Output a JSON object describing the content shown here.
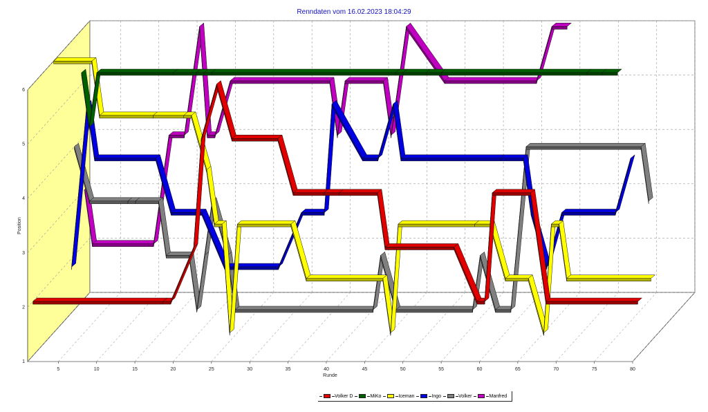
{
  "chart_data": {
    "type": "line",
    "title": "Renndaten vom 16.02.2023 18:04:29",
    "xlabel": "Runde",
    "ylabel": "Position",
    "x_ticks": [
      "5",
      "10",
      "15",
      "20",
      "25",
      "30",
      "35",
      "40",
      "45",
      "50",
      "55",
      "60",
      "65",
      "70",
      "75",
      "80"
    ],
    "y_ticks": [
      "1",
      "2",
      "3",
      "4",
      "5",
      "6"
    ],
    "xlim": [
      1,
      80
    ],
    "ylim": [
      1,
      6
    ],
    "grid": true,
    "legend_position": "bottom",
    "series": [
      {
        "name": "Volker D",
        "color": "#e00000",
        "segments": [
          [
            1,
            2
          ],
          [
            18,
            2
          ],
          [
            19,
            2
          ],
          [
            22,
            3
          ],
          [
            23,
            5
          ],
          [
            25,
            6
          ],
          [
            27,
            5
          ],
          [
            33,
            5
          ],
          [
            35,
            4
          ],
          [
            39,
            4
          ],
          [
            41,
            4
          ],
          [
            46,
            4
          ],
          [
            47,
            3
          ],
          [
            56,
            3
          ],
          [
            59,
            2
          ],
          [
            60,
            2
          ],
          [
            61,
            4
          ],
          [
            66,
            4
          ],
          [
            68,
            2
          ],
          [
            80,
            2
          ]
        ]
      },
      {
        "name": "MiKo",
        "color": "#006000",
        "segments": [
          [
            6,
            6
          ],
          [
            7,
            5
          ],
          [
            8,
            6
          ],
          [
            18,
            6
          ],
          [
            21,
            6
          ],
          [
            22,
            6
          ],
          [
            23,
            6
          ],
          [
            47,
            6
          ],
          [
            48,
            6
          ],
          [
            51,
            6
          ],
          [
            53,
            6
          ],
          [
            72,
            6
          ],
          [
            74,
            6
          ],
          [
            76,
            6
          ]
        ]
      },
      {
        "name": "Iceman",
        "color": "#ffff00",
        "segments": [
          [
            1,
            6
          ],
          [
            6,
            6
          ],
          [
            7,
            5
          ],
          [
            14,
            5
          ],
          [
            18,
            5
          ],
          [
            19,
            5
          ],
          [
            21,
            4
          ],
          [
            22,
            3
          ],
          [
            23,
            3
          ],
          [
            24,
            1
          ],
          [
            25,
            3
          ],
          [
            32,
            3
          ],
          [
            34,
            2
          ],
          [
            44,
            2
          ],
          [
            45,
            1
          ],
          [
            46,
            3
          ],
          [
            56,
            3
          ],
          [
            58,
            3
          ],
          [
            60,
            2
          ],
          [
            63,
            2
          ],
          [
            65,
            1
          ],
          [
            66,
            3
          ],
          [
            67,
            3
          ],
          [
            68,
            2
          ],
          [
            79,
            2
          ]
        ]
      },
      {
        "name": "Ingo",
        "color": "#0000e0",
        "segments": [
          [
            2,
            2
          ],
          [
            4,
            5
          ],
          [
            5,
            4
          ],
          [
            13,
            4
          ],
          [
            15,
            3
          ],
          [
            19,
            3
          ],
          [
            22,
            2
          ],
          [
            23,
            2
          ],
          [
            29,
            2
          ],
          [
            32,
            3
          ],
          [
            35,
            3
          ],
          [
            36,
            5
          ],
          [
            40,
            4
          ],
          [
            42,
            4
          ],
          [
            44,
            5
          ],
          [
            45,
            4
          ],
          [
            58,
            4
          ],
          [
            61,
            4
          ],
          [
            62,
            3
          ],
          [
            64,
            2
          ],
          [
            66,
            3
          ],
          [
            73,
            3
          ],
          [
            75,
            4
          ]
        ]
      },
      {
        "name": "Volker",
        "color": "#808080",
        "segments": [
          [
            1,
            4
          ],
          [
            3,
            3
          ],
          [
            8,
            3
          ],
          [
            9,
            3
          ],
          [
            12,
            3
          ],
          [
            13,
            2
          ],
          [
            16,
            2
          ],
          [
            17,
            1
          ],
          [
            18,
            2
          ],
          [
            19,
            3
          ],
          [
            21,
            2
          ],
          [
            22,
            1
          ],
          [
            40,
            1
          ],
          [
            41,
            2
          ],
          [
            43,
            1
          ],
          [
            53,
            1
          ],
          [
            54,
            2
          ],
          [
            56,
            1
          ],
          [
            58,
            1
          ],
          [
            60,
            4
          ],
          [
            75,
            4
          ],
          [
            76,
            3
          ]
        ]
      },
      {
        "name": "Manfred",
        "color": "#c000c0",
        "segments": [
          [
            1,
            3
          ],
          [
            2,
            2
          ],
          [
            10,
            2
          ],
          [
            12,
            4
          ],
          [
            14,
            4
          ],
          [
            16,
            6
          ],
          [
            17,
            4
          ],
          [
            18,
            4
          ],
          [
            20,
            5
          ],
          [
            33,
            5
          ],
          [
            34,
            4
          ],
          [
            35,
            5
          ],
          [
            40,
            5
          ],
          [
            41,
            4
          ],
          [
            43,
            6
          ],
          [
            48,
            5
          ],
          [
            60,
            5
          ],
          [
            62,
            6
          ],
          [
            64,
            6
          ]
        ]
      }
    ]
  }
}
